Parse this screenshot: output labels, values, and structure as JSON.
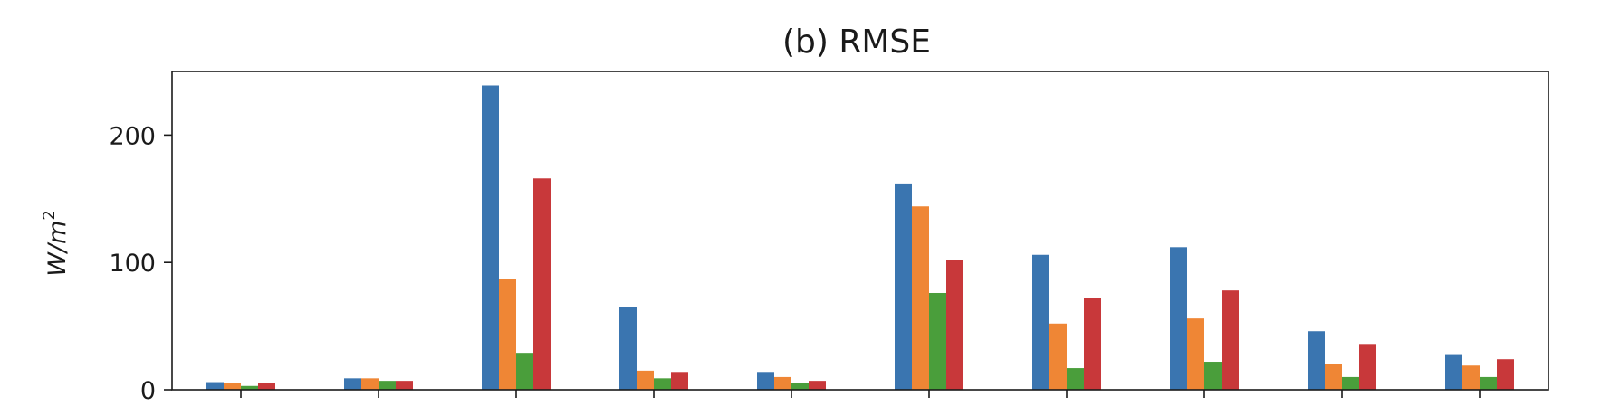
{
  "chart_data": {
    "type": "bar",
    "title": "(b) RMSE",
    "xlabel": "",
    "ylabel": "W/m²",
    "ylim": [
      0,
      250
    ],
    "yticks": [
      0,
      100,
      200
    ],
    "categories": [
      "",
      "",
      "",
      "",
      "",
      "",
      "",
      "",
      "",
      ""
    ],
    "grid": false,
    "legend": "none",
    "series": [
      {
        "color": "#3a75b0",
        "values": [
          6,
          9,
          239,
          65,
          14,
          162,
          106,
          112,
          46,
          28
        ]
      },
      {
        "color": "#ef8635",
        "values": [
          5,
          9,
          87,
          15,
          10,
          144,
          52,
          56,
          20,
          19
        ]
      },
      {
        "color": "#4a9e3b",
        "values": [
          3,
          7,
          29,
          9,
          5,
          76,
          17,
          22,
          10,
          10
        ]
      },
      {
        "color": "#c8383a",
        "values": [
          5,
          7,
          166,
          14,
          7,
          102,
          72,
          78,
          36,
          24
        ]
      }
    ]
  }
}
